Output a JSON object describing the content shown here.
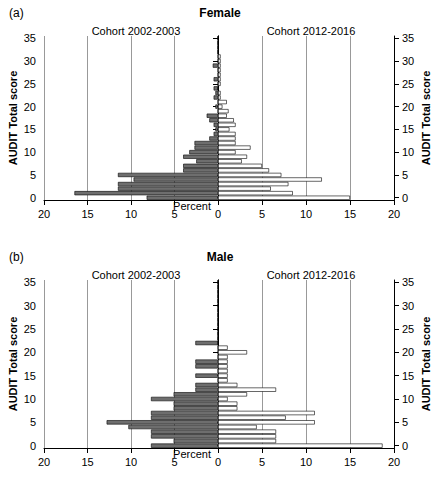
{
  "chart_data": [
    {
      "type": "bar",
      "orientation": "horizontal",
      "title": "Female",
      "annotations": [
        "(a)"
      ],
      "xlabel": "Percent",
      "ylabel": "AUDIT Total score",
      "categories": [
        0,
        null,
        null,
        null,
        null,
        5,
        null,
        null,
        null,
        null,
        10,
        null,
        null,
        null,
        null,
        15,
        null,
        null,
        null,
        null,
        20,
        null,
        null,
        null,
        null,
        25,
        null,
        null,
        null,
        null,
        30,
        null,
        null,
        null,
        null,
        35
      ],
      "xlim": [
        0,
        20
      ],
      "xticks": [
        0,
        5,
        10,
        15,
        20
      ],
      "grid": true,
      "series": [
        {
          "name": "Cohort 2002-2003",
          "color": "#6e6e6e",
          "values": [
            8.2,
            16.5,
            11.5,
            11.5,
            9.7,
            11.5,
            4.0,
            4.0,
            2.5,
            4.0,
            3.3,
            2.7,
            2.7,
            1.0,
            0.5,
            0.3,
            0.5,
            1.0,
            1.3,
            0,
            0.3,
            0,
            0.5,
            0.3,
            0.5,
            0,
            0.5,
            0,
            0,
            0.6,
            0,
            0,
            0,
            0,
            0,
            0
          ]
        },
        {
          "name": "Cohort 2012-2016",
          "color": "#ffffff",
          "values": [
            15,
            8.5,
            6,
            8,
            11.8,
            7.2,
            5.8,
            5,
            2.7,
            3.3,
            2,
            3.7,
            2,
            2,
            2,
            1.3,
            2,
            1.8,
            1,
            1.2,
            0.5,
            1,
            0.3,
            0.3,
            0,
            0.3,
            0.3,
            0.3,
            0.3,
            0.3,
            0.3,
            0.3,
            0,
            0,
            0,
            0
          ]
        }
      ]
    },
    {
      "type": "bar",
      "orientation": "horizontal",
      "title": "Male",
      "annotations": [
        "(b)"
      ],
      "xlabel": "Percent",
      "ylabel": "AUDIT Total score",
      "categories": [
        0,
        null,
        null,
        null,
        null,
        5,
        null,
        null,
        null,
        null,
        10,
        null,
        null,
        null,
        null,
        15,
        null,
        null,
        null,
        null,
        20,
        null,
        null,
        null,
        null,
        25,
        null,
        null,
        null,
        null,
        30,
        null,
        null,
        null,
        null,
        35
      ],
      "xlim": [
        0,
        20
      ],
      "xticks": [
        0,
        5,
        10,
        15,
        20
      ],
      "grid": true,
      "series": [
        {
          "name": "Cohort 2002-2003",
          "color": "#6e6e6e",
          "values": [
            7.7,
            5.1,
            7.7,
            7.7,
            10.3,
            12.8,
            7.7,
            7.7,
            5.1,
            5.1,
            7.7,
            5.1,
            2.6,
            2.6,
            0,
            2.6,
            0,
            2.6,
            2.6,
            0,
            0,
            0,
            2.6,
            0,
            0,
            0,
            0,
            0,
            0,
            0,
            0,
            0,
            0,
            0,
            0,
            0
          ]
        },
        {
          "name": "Cohort 2012-2016",
          "color": "#ffffff",
          "values": [
            18.7,
            6.6,
            6.6,
            6.6,
            4.4,
            11,
            7.7,
            11,
            2.2,
            2.2,
            1.1,
            3.3,
            6.6,
            2.2,
            1.1,
            1.1,
            1.1,
            1.1,
            1.1,
            1.1,
            3.3,
            1.1,
            0,
            0,
            0,
            0,
            0,
            0,
            0,
            0,
            0,
            0,
            0,
            0,
            0,
            0
          ]
        }
      ]
    }
  ]
}
